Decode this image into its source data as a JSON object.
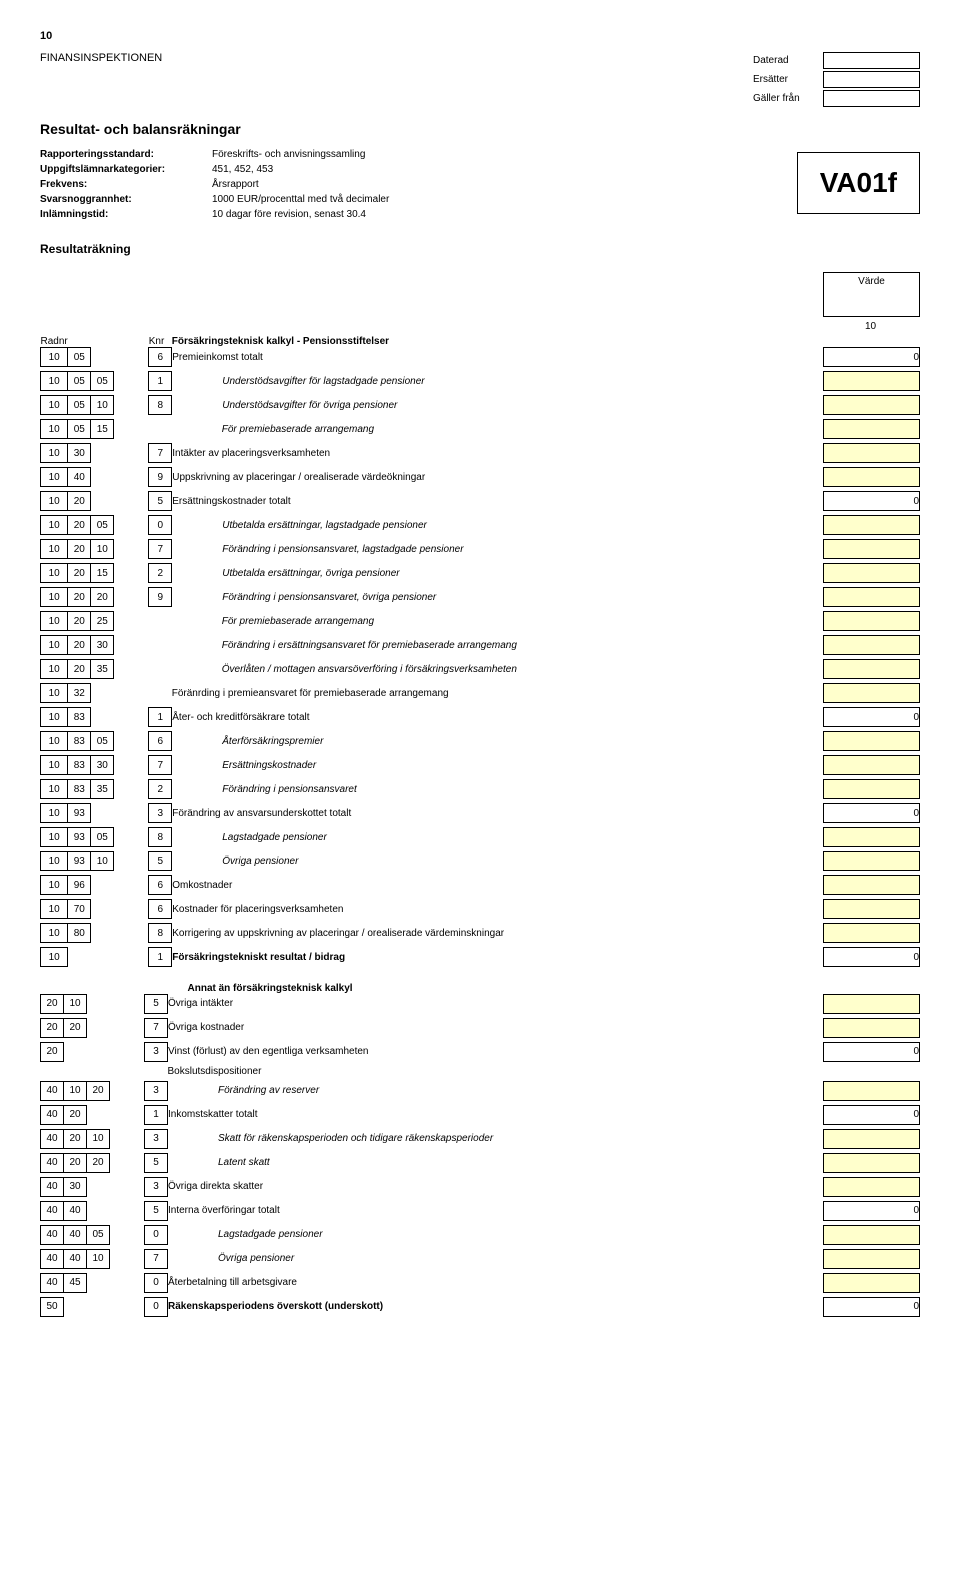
{
  "page_number": "10",
  "agency": "FINANSINSPEKTIONEN",
  "date_labels": {
    "dated": "Daterad",
    "replaces": "Ersätter",
    "valid_from": "Gäller från"
  },
  "title": "Resultat- och balansräkningar",
  "meta": {
    "rapporteringsstandard_k": "Rapporteringsstandard:",
    "rapporteringsstandard_v": "Föreskrifts- och anvisningssamling",
    "uppgiftslamnarkategorier_k": "Uppgiftslämnarkategorier:",
    "uppgiftslamnarkategorier_v": "451, 452, 453",
    "frekvens_k": "Frekvens:",
    "frekvens_v": "Årsrapport",
    "svarsnoggrannhet_k": "Svarsnoggrannhet:",
    "svarsnoggrannhet_v": "1000 EUR/procenttal med två decimaler",
    "inlamningstid_k": "Inlämningstid:",
    "inlamningstid_v": "10 dagar före revision, senast 30.4"
  },
  "form_code": "VA01f",
  "sub_title": "Resultaträkning",
  "varde": "Värde",
  "col_ten": "10",
  "hdr_radnr": "Radnr",
  "hdr_knr": "Knr",
  "hdr_desc": "Försäkringsteknisk kalkyl - Pensionsstiftelser",
  "rows": [
    {
      "c": [
        "10",
        "05",
        "",
        "",
        "6"
      ],
      "label": "Premieinkomst totalt",
      "indent": 0,
      "val": "0",
      "yellow": false,
      "bold": false
    },
    {
      "c": [
        "10",
        "05",
        "05",
        "",
        "1"
      ],
      "label": "Understödsavgifter för lagstadgade pensioner",
      "indent": 1,
      "val": "",
      "yellow": true,
      "bold": false
    },
    {
      "c": [
        "10",
        "05",
        "10",
        "",
        "8"
      ],
      "label": "Understödsavgifter för övriga pensioner",
      "indent": 1,
      "val": "",
      "yellow": true,
      "bold": false
    },
    {
      "c": [
        "10",
        "05",
        "15",
        "",
        ""
      ],
      "label": "För premiebaserade arrangemang",
      "indent": 1,
      "val": "",
      "yellow": true,
      "bold": false
    },
    {
      "c": [
        "10",
        "30",
        "",
        "",
        "7"
      ],
      "label": "Intäkter av placeringsverksamheten",
      "indent": 0,
      "val": "",
      "yellow": true,
      "bold": false
    },
    {
      "c": [
        "10",
        "40",
        "",
        "",
        "9"
      ],
      "label": "Uppskrivning av placeringar / orealiserade värdeökningar",
      "indent": 0,
      "val": "",
      "yellow": true,
      "bold": false
    },
    {
      "c": [
        "10",
        "20",
        "",
        "",
        "5"
      ],
      "label": "Ersättningskostnader totalt",
      "indent": 0,
      "val": "0",
      "yellow": false,
      "bold": false
    },
    {
      "c": [
        "10",
        "20",
        "05",
        "",
        "0"
      ],
      "label": "Utbetalda ersättningar, lagstadgade pensioner",
      "indent": 1,
      "val": "",
      "yellow": true,
      "bold": false
    },
    {
      "c": [
        "10",
        "20",
        "10",
        "",
        "7"
      ],
      "label": "Förändring i pensionsansvaret, lagstadgade pensioner",
      "indent": 1,
      "val": "",
      "yellow": true,
      "bold": false
    },
    {
      "c": [
        "10",
        "20",
        "15",
        "",
        "2"
      ],
      "label": "Utbetalda ersättningar, övriga pensioner",
      "indent": 1,
      "val": "",
      "yellow": true,
      "bold": false
    },
    {
      "c": [
        "10",
        "20",
        "20",
        "",
        "9"
      ],
      "label": "Förändring i pensionsansvaret, övriga pensioner",
      "indent": 1,
      "val": "",
      "yellow": true,
      "bold": false
    },
    {
      "c": [
        "10",
        "20",
        "25",
        "",
        ""
      ],
      "label": "För premiebaserade arrangemang",
      "indent": 1,
      "val": "",
      "yellow": true,
      "bold": false
    },
    {
      "c": [
        "10",
        "20",
        "30",
        "",
        ""
      ],
      "label": "Förändring i ersättningsansvaret för premiebaserade arrangemang",
      "indent": 1,
      "val": "",
      "yellow": true,
      "bold": false
    },
    {
      "c": [
        "10",
        "20",
        "35",
        "",
        ""
      ],
      "label": "Överlåten / mottagen ansvarsöverföring i försäkringsverksamheten",
      "indent": 1,
      "val": "",
      "yellow": true,
      "bold": false
    },
    {
      "c": [
        "10",
        "32",
        "",
        "",
        ""
      ],
      "label": "Föränrding i premieansvaret för premiebaserade arrangemang",
      "indent": 0,
      "val": "",
      "yellow": true,
      "bold": false
    },
    {
      "c": [
        "10",
        "83",
        "",
        "",
        "1"
      ],
      "label": "Åter- och kreditförsäkrare totalt",
      "indent": 0,
      "val": "0",
      "yellow": false,
      "bold": false
    },
    {
      "c": [
        "10",
        "83",
        "05",
        "",
        "6"
      ],
      "label": "Återförsäkringspremier",
      "indent": 1,
      "val": "",
      "yellow": true,
      "bold": false
    },
    {
      "c": [
        "10",
        "83",
        "30",
        "",
        "7"
      ],
      "label": "Ersättningskostnader",
      "indent": 1,
      "val": "",
      "yellow": true,
      "bold": false
    },
    {
      "c": [
        "10",
        "83",
        "35",
        "",
        "2"
      ],
      "label": "Förändring i pensionsansvaret",
      "indent": 1,
      "val": "",
      "yellow": true,
      "bold": false
    },
    {
      "c": [
        "10",
        "93",
        "",
        "",
        "3"
      ],
      "label": "Förändring av ansvarsunderskottet totalt",
      "indent": 0,
      "val": "0",
      "yellow": false,
      "bold": false
    },
    {
      "c": [
        "10",
        "93",
        "05",
        "",
        "8"
      ],
      "label": "Lagstadgade pensioner",
      "indent": 1,
      "val": "",
      "yellow": true,
      "bold": false
    },
    {
      "c": [
        "10",
        "93",
        "10",
        "",
        "5"
      ],
      "label": "Övriga pensioner",
      "indent": 1,
      "val": "",
      "yellow": true,
      "bold": false
    },
    {
      "c": [
        "10",
        "96",
        "",
        "",
        "6"
      ],
      "label": "Omkostnader",
      "indent": 0,
      "val": "",
      "yellow": true,
      "bold": false
    },
    {
      "c": [
        "10",
        "70",
        "",
        "",
        "6"
      ],
      "label": "Kostnader för placeringsverksamheten",
      "indent": 0,
      "val": "",
      "yellow": true,
      "bold": false
    },
    {
      "c": [
        "10",
        "80",
        "",
        "",
        "8"
      ],
      "label": "Korrigering av uppskrivning av placeringar / orealiserade värdeminskningar",
      "indent": 0,
      "val": "",
      "yellow": true,
      "bold": false
    },
    {
      "c": [
        "10",
        "",
        "",
        "",
        "1"
      ],
      "label": "Försäkringstekniskt resultat / bidrag",
      "indent": 0,
      "val": "0",
      "yellow": false,
      "bold": true
    }
  ],
  "section2_title": "Annat än försäkringsteknisk kalkyl",
  "rows2": [
    {
      "c": [
        "20",
        "10",
        "",
        "",
        "5"
      ],
      "label": "Övriga intäkter",
      "indent": 0,
      "val": "",
      "yellow": true,
      "bold": false
    },
    {
      "c": [
        "20",
        "20",
        "",
        "",
        "7"
      ],
      "label": "Övriga kostnader",
      "indent": 0,
      "val": "",
      "yellow": true,
      "bold": false
    },
    {
      "c": [
        "20",
        "",
        "",
        "",
        "3"
      ],
      "label": "Vinst (förlust) av den egentliga verksamheten",
      "indent": 0,
      "val": "0",
      "yellow": false,
      "bold": false
    },
    {
      "c": [
        "",
        "",
        "",
        "",
        ""
      ],
      "label": "Bokslutsdispositioner",
      "indent": 0,
      "val": null,
      "yellow": false,
      "bold": false
    },
    {
      "c": [
        "40",
        "10",
        "20",
        "",
        "3"
      ],
      "label": "Förändring av reserver",
      "indent": 1,
      "val": "",
      "yellow": true,
      "bold": false
    },
    {
      "c": [
        "40",
        "20",
        "",
        "",
        "1"
      ],
      "label": "Inkomstskatter totalt",
      "indent": 0,
      "val": "0",
      "yellow": false,
      "bold": false
    },
    {
      "c": [
        "40",
        "20",
        "10",
        "",
        "3"
      ],
      "label": "Skatt för räkenskapsperioden och tidigare räkenskapsperioder",
      "indent": 1,
      "val": "",
      "yellow": true,
      "bold": false
    },
    {
      "c": [
        "40",
        "20",
        "20",
        "",
        "5"
      ],
      "label": "Latent skatt",
      "indent": 1,
      "val": "",
      "yellow": true,
      "bold": false
    },
    {
      "c": [
        "40",
        "30",
        "",
        "",
        "3"
      ],
      "label": "Övriga direkta skatter",
      "indent": 0,
      "val": "",
      "yellow": true,
      "bold": false
    },
    {
      "c": [
        "40",
        "40",
        "",
        "",
        "5"
      ],
      "label": "Interna överföringar totalt",
      "indent": 0,
      "val": "0",
      "yellow": false,
      "bold": false
    },
    {
      "c": [
        "40",
        "40",
        "05",
        "",
        "0"
      ],
      "label": "Lagstadgade pensioner",
      "indent": 1,
      "val": "",
      "yellow": true,
      "bold": false
    },
    {
      "c": [
        "40",
        "40",
        "10",
        "",
        "7"
      ],
      "label": "Övriga pensioner",
      "indent": 1,
      "val": "",
      "yellow": true,
      "bold": false
    },
    {
      "c": [
        "40",
        "45",
        "",
        "",
        "0"
      ],
      "label": "Återbetalning till arbetsgivare",
      "indent": 0,
      "val": "",
      "yellow": true,
      "bold": false
    },
    {
      "c": [
        "50",
        "",
        "",
        "",
        "0"
      ],
      "label": "Räkenskapsperiodens överskott (underskott)",
      "indent": 0,
      "val": "0",
      "yellow": false,
      "bold": true
    }
  ]
}
